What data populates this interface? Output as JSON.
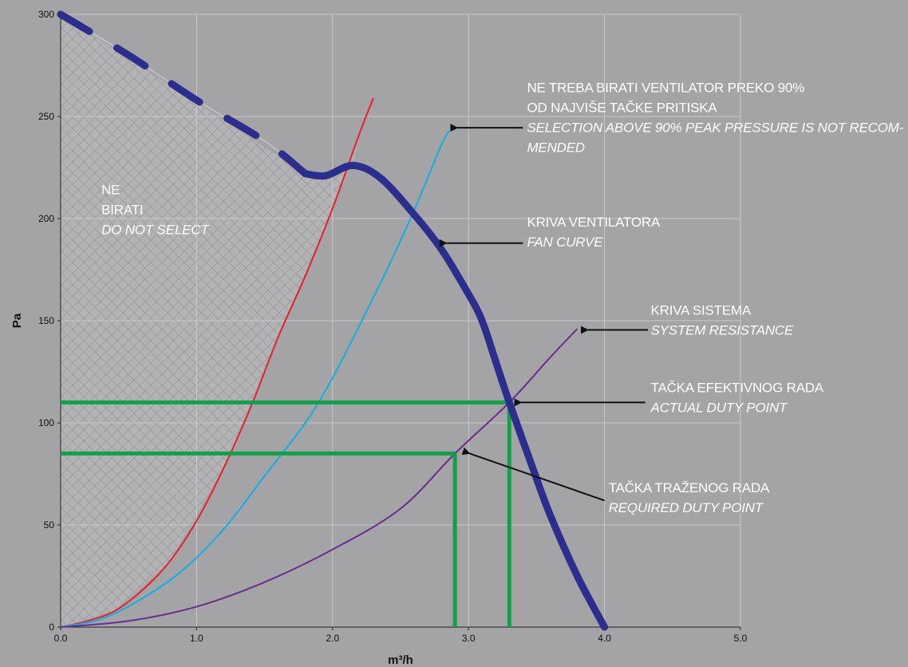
{
  "chart_data": {
    "type": "line",
    "title": "",
    "xlabel": "m³/h",
    "ylabel": "Pa",
    "xlim": [
      0,
      5
    ],
    "ylim": [
      0,
      300
    ],
    "x_ticks": [
      "0.0",
      "1.0",
      "2.0",
      "3.0",
      "4.0",
      "5.0"
    ],
    "y_ticks": [
      "0",
      "50",
      "100",
      "150",
      "200",
      "250",
      "300"
    ],
    "grid": true,
    "colors": {
      "background": "#a4a4a6",
      "fan_curve": "#2b2e8c",
      "red_curve": "#e8202a",
      "cyan_curve": "#10aee6",
      "system_curve": "#6a2c91",
      "duty_lines": "#12a14a",
      "arrow": "#111111",
      "annotation_text": "#ffffff"
    },
    "series": [
      {
        "key": "fan",
        "points": [
          [
            0.0,
            300
          ],
          [
            0.5,
            280
          ],
          [
            1.0,
            258
          ],
          [
            1.5,
            238
          ],
          [
            1.8,
            222
          ],
          [
            1.95,
            221
          ],
          [
            2.15,
            226
          ],
          [
            2.35,
            220
          ],
          [
            2.6,
            202
          ],
          [
            2.8,
            185
          ],
          [
            3.0,
            163
          ],
          [
            3.1,
            150
          ],
          [
            3.2,
            130
          ],
          [
            3.3,
            110
          ],
          [
            3.45,
            82
          ],
          [
            3.6,
            55
          ],
          [
            3.8,
            25
          ],
          [
            4.0,
            0
          ]
        ]
      },
      {
        "key": "red",
        "points": [
          [
            0.0,
            0
          ],
          [
            0.2,
            3
          ],
          [
            0.4,
            8
          ],
          [
            0.6,
            18
          ],
          [
            0.8,
            32
          ],
          [
            1.0,
            52
          ],
          [
            1.2,
            78
          ],
          [
            1.4,
            108
          ],
          [
            1.6,
            142
          ],
          [
            1.8,
            172
          ],
          [
            2.0,
            205
          ],
          [
            2.2,
            242
          ],
          [
            2.3,
            259
          ]
        ]
      },
      {
        "key": "cyan",
        "points": [
          [
            0.0,
            0
          ],
          [
            0.3,
            4
          ],
          [
            0.6,
            14
          ],
          [
            0.9,
            28
          ],
          [
            1.2,
            48
          ],
          [
            1.5,
            74
          ],
          [
            1.8,
            100
          ],
          [
            2.0,
            122
          ],
          [
            2.2,
            148
          ],
          [
            2.4,
            175
          ],
          [
            2.6,
            204
          ],
          [
            2.8,
            236
          ],
          [
            2.86,
            243
          ]
        ]
      },
      {
        "key": "system",
        "points": [
          [
            0.0,
            0
          ],
          [
            0.5,
            3
          ],
          [
            1.0,
            10
          ],
          [
            1.5,
            22
          ],
          [
            2.0,
            38
          ],
          [
            2.5,
            58
          ],
          [
            2.9,
            85
          ],
          [
            3.3,
            110
          ],
          [
            3.6,
            132
          ],
          [
            3.8,
            146
          ]
        ]
      }
    ],
    "duty_lines": [
      {
        "x": 2.9,
        "y": 85
      },
      {
        "x": 3.3,
        "y": 110
      }
    ],
    "hatched_region": {
      "points": [
        [
          0.0,
          300
        ],
        [
          1.8,
          222
        ],
        [
          1.95,
          221
        ],
        [
          2.15,
          226
        ],
        [
          2.2,
          242
        ],
        [
          2.0,
          205
        ],
        [
          1.6,
          142
        ],
        [
          1.2,
          78
        ],
        [
          0.8,
          32
        ],
        [
          0.4,
          8
        ],
        [
          0.0,
          0
        ]
      ]
    },
    "arrows": [
      {
        "from": [
          2.86,
          244.5
        ],
        "to": [
          3.4,
          244.5
        ]
      },
      {
        "from": [
          2.78,
          188
        ],
        "to": [
          3.4,
          188
        ]
      },
      {
        "from": [
          3.82,
          145.5
        ],
        "to": [
          4.32,
          145.5
        ]
      },
      {
        "from": [
          3.33,
          110
        ],
        "to": [
          4.3,
          110
        ]
      },
      {
        "from": [
          2.95,
          85
        ],
        "to": [
          4.0,
          62
        ]
      }
    ],
    "annotations": [
      {
        "lines": [
          {
            "text": "NE TREBA BIRATI VENTILATOR PREKO 90%",
            "italic": false
          },
          {
            "text": "OD NAJVIŠE TAČKE PRITISKA",
            "italic": false
          },
          {
            "text": "SELECTION ABOVE 90% PEAK PRESSURE IS NOT RECOM-",
            "italic": true
          },
          {
            "text": "MENDED",
            "italic": true
          }
        ],
        "at": [
          3.43,
          262
        ]
      },
      {
        "lines": [
          {
            "text": "KRIVA VENTILATORA",
            "italic": false
          },
          {
            "text": "FAN CURVE",
            "italic": true
          }
        ],
        "at": [
          3.43,
          196
        ]
      },
      {
        "lines": [
          {
            "text": "KRIVA SISTEMA",
            "italic": false
          },
          {
            "text": "SYSTEM RESISTANCE",
            "italic": true
          }
        ],
        "at": [
          4.34,
          153
        ]
      },
      {
        "lines": [
          {
            "text": "TAČKA EFEKTIVNOG RADA",
            "italic": false
          },
          {
            "text": "ACTUAL DUTY POINT",
            "italic": true
          }
        ],
        "at": [
          4.34,
          115
        ]
      },
      {
        "lines": [
          {
            "text": "TAČKA TRAŽENOG RADA",
            "italic": false
          },
          {
            "text": "REQUIRED DUTY POINT",
            "italic": true
          }
        ],
        "at": [
          4.03,
          66
        ]
      },
      {
        "lines": [
          {
            "text": "NE",
            "italic": false
          },
          {
            "text": "BIRATI",
            "italic": false
          },
          {
            "text": "DO NOT SELECT",
            "italic": true
          }
        ],
        "at": [
          0.3,
          212
        ]
      }
    ]
  }
}
